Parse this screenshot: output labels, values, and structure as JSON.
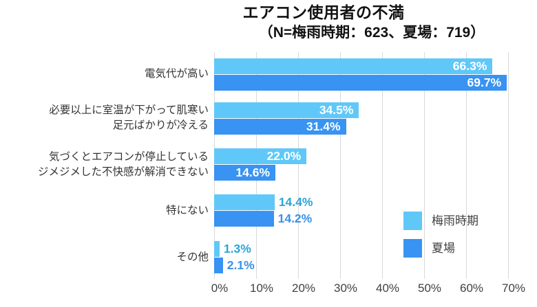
{
  "chart_data": {
    "type": "bar",
    "orientation": "horizontal",
    "title": "エアコン使用者の不満",
    "subtitle": "（N=梅雨時期：623、夏場：719）",
    "sample_sizes": {
      "梅雨時期": 623,
      "夏場": 719
    },
    "categories": [
      [
        "電気代が高い"
      ],
      [
        "必要以上に室温が下がって肌寒い",
        "足元ばかりが冷える"
      ],
      [
        "気づくとエアコンが停止している",
        "ジメジメした不快感が解消できない"
      ],
      [
        "特にない"
      ],
      [
        "その他"
      ]
    ],
    "series": [
      {
        "name": "梅雨時期",
        "values": [
          66.3,
          34.5,
          22.0,
          14.4,
          1.3
        ]
      },
      {
        "name": "夏場",
        "values": [
          69.7,
          31.4,
          14.6,
          14.2,
          2.1
        ]
      }
    ],
    "value_labels": [
      [
        "66.3%",
        "34.5%",
        "22.0%",
        "14.4%",
        "1.3%"
      ],
      [
        "69.7%",
        "31.4%",
        "14.6%",
        "14.2%",
        "2.1%"
      ]
    ],
    "xlim": [
      0,
      70
    ],
    "x_ticks": [
      "0%",
      "10%",
      "20%",
      "30%",
      "40%",
      "50%",
      "60%",
      "70%"
    ],
    "grid": "vertical",
    "legend_position": "inside-right"
  },
  "colors": {
    "series_rainy_season": "#5FC8F8",
    "series_summer": "#3893F2",
    "value_label_inside": "#FFFFFF",
    "value_label_outside_rainy_season": "#2BA4D8",
    "value_label_outside_summer": "#3A91E6",
    "gridline": "#D9D9D9",
    "axis_text": "#404040",
    "category_text": "#333333",
    "title_text": "#111111",
    "background": "#FFFFFF"
  }
}
